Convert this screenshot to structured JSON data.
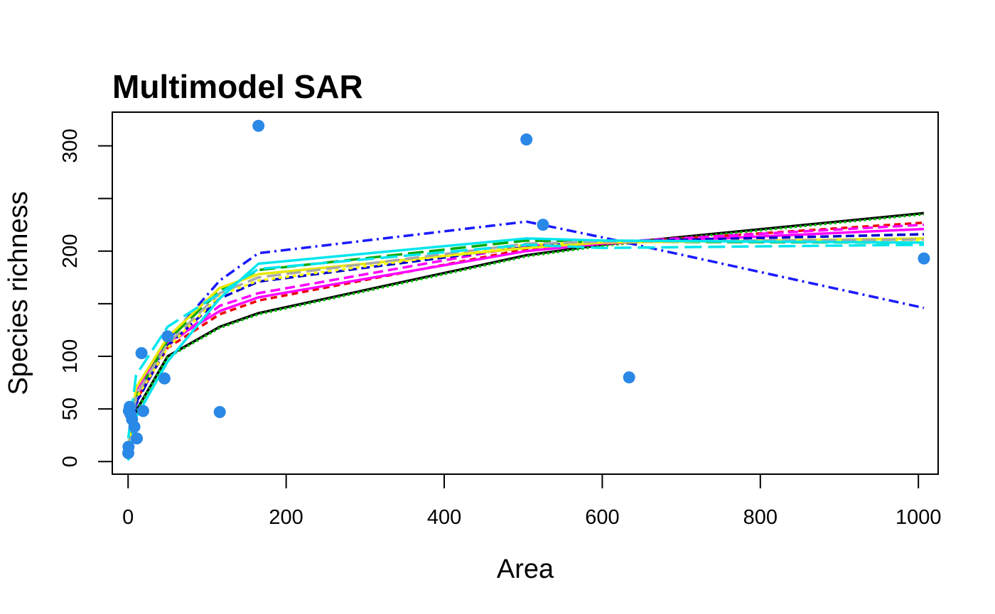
{
  "chart_data": {
    "type": "scatter",
    "title": "Multimodel SAR",
    "xlabel": "Area",
    "ylabel": "Species richness",
    "xlim": [
      -20,
      1025
    ],
    "ylim": [
      -12,
      332
    ],
    "x_ticks": [
      0,
      200,
      400,
      600,
      800,
      1000
    ],
    "y_ticks": [
      0,
      50,
      100,
      150,
      200,
      250,
      300
    ],
    "y_tick_labels": [
      "0",
      "50",
      "100",
      "",
      "200",
      "",
      "300"
    ],
    "grid": false,
    "legend": "none",
    "point_color": "#2a88e6",
    "points": [
      {
        "x": 0.2,
        "y": 8
      },
      {
        "x": 0.5,
        "y": 14
      },
      {
        "x": 1,
        "y": 48
      },
      {
        "x": 2,
        "y": 52
      },
      {
        "x": 3,
        "y": 45
      },
      {
        "x": 5,
        "y": 40
      },
      {
        "x": 8,
        "y": 33
      },
      {
        "x": 11,
        "y": 22
      },
      {
        "x": 17,
        "y": 103
      },
      {
        "x": 19,
        "y": 48
      },
      {
        "x": 46,
        "y": 79
      },
      {
        "x": 50,
        "y": 119
      },
      {
        "x": 116,
        "y": 47
      },
      {
        "x": 165,
        "y": 319
      },
      {
        "x": 504,
        "y": 306
      },
      {
        "x": 525,
        "y": 225
      },
      {
        "x": 634,
        "y": 80
      },
      {
        "x": 1007,
        "y": 193
      }
    ],
    "fit_x": [
      0.2,
      10,
      50,
      116,
      165,
      504,
      600,
      1007
    ],
    "series": [
      {
        "color": "#000000",
        "dash": "",
        "values": [
          2,
          48,
          100,
          128,
          141,
          196,
          206,
          236
        ]
      },
      {
        "color": "#00bb00",
        "dash": "3 4",
        "values": [
          2,
          47,
          99,
          127,
          140,
          195,
          205,
          235
        ]
      },
      {
        "color": "#ee0000",
        "dash": "9 6",
        "values": [
          4,
          58,
          108,
          140,
          153,
          202,
          207,
          227
        ]
      },
      {
        "color": "#ff00ff",
        "dash": "14 7",
        "values": [
          5,
          62,
          110,
          148,
          160,
          205,
          208,
          225
        ]
      },
      {
        "color": "#ff00ff",
        "dash": "",
        "values": [
          6,
          68,
          113,
          143,
          156,
          200,
          207,
          221
        ]
      },
      {
        "color": "#1a1aff",
        "dash": "14 6 3 6",
        "values": [
          10,
          54,
          115,
          172,
          198,
          228,
          213,
          146
        ]
      },
      {
        "color": "#0000cc",
        "dash": "12 6",
        "values": [
          8,
          56,
          110,
          155,
          171,
          204,
          209,
          216
        ]
      },
      {
        "color": "#00aa00",
        "dash": "22 8",
        "values": [
          12,
          62,
          115,
          162,
          182,
          210,
          209,
          208
        ]
      },
      {
        "color": "#e8e800",
        "dash": "",
        "values": [
          14,
          70,
          118,
          165,
          178,
          203,
          208,
          212
        ]
      },
      {
        "color": "#ffff00",
        "dash": "5 5",
        "values": [
          10,
          60,
          108,
          158,
          172,
          206,
          209,
          210
        ]
      },
      {
        "color": "#a8a8a8",
        "dash": "20 8",
        "values": [
          11,
          63,
          112,
          160,
          175,
          207,
          209,
          211
        ]
      },
      {
        "color": "#00e5ee",
        "dash": "24 9",
        "values": [
          22,
          82,
          128,
          160,
          183,
          206,
          203,
          206
        ]
      },
      {
        "color": "#00e5ee",
        "dash": "",
        "values": [
          1,
          42,
          95,
          155,
          188,
          212,
          210,
          208
        ]
      }
    ]
  }
}
